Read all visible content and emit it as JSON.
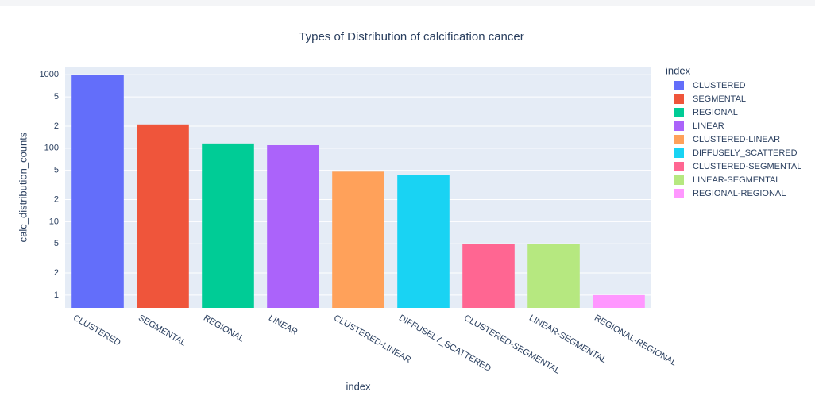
{
  "chart_data": {
    "type": "bar",
    "title": "Types of Distribution of calcification  cancer",
    "x_label": "index",
    "y_label": "calc_distribution_counts",
    "legend_title": "index",
    "log_y": true,
    "grid": true,
    "legend_position": "right",
    "categories": [
      "CLUSTERED",
      "SEGMENTAL",
      "REGIONAL",
      "LINEAR",
      "CLUSTERED-LINEAR",
      "DIFFUSELY_SCATTERED",
      "CLUSTERED-SEGMENTAL",
      "LINEAR-SEGMENTAL",
      "REGIONAL-REGIONAL"
    ],
    "values": [
      1000,
      211,
      116,
      110,
      48,
      43,
      5,
      5,
      1
    ],
    "colors": [
      "#636efa",
      "#ef553b",
      "#00cc96",
      "#ab63fa",
      "#ffa15a",
      "#19d3f3",
      "#ff6692",
      "#b6e880",
      "#ff97ff"
    ],
    "ylim": [
      0.67,
      1260
    ],
    "yticks": [
      1,
      {
        "value": 2,
        "label": "2"
      },
      5,
      10,
      {
        "value": 20,
        "label": "2"
      },
      {
        "value": 50,
        "label": "5"
      },
      100,
      {
        "value": 200,
        "label": "2"
      },
      {
        "value": 500,
        "label": "5"
      },
      1000
    ]
  }
}
